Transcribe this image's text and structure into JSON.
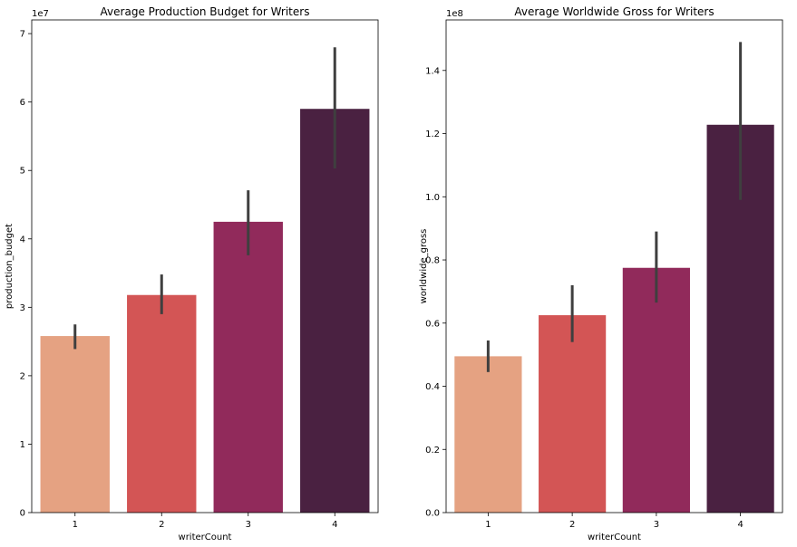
{
  "chart_data": [
    {
      "type": "bar",
      "title": "Average Production Budget for Writers",
      "xlabel": "writerCount",
      "ylabel": "production_budget",
      "y_offset_label": "1e7",
      "ylim": [
        0,
        7.2
      ],
      "y_ticks": [
        0,
        1,
        2,
        3,
        4,
        5,
        6,
        7
      ],
      "y_tick_labels": [
        "0",
        "1",
        "2",
        "3",
        "4",
        "5",
        "6",
        "7"
      ],
      "categories": [
        "1",
        "2",
        "3",
        "4"
      ],
      "values": [
        2.58,
        3.18,
        4.25,
        5.9
      ],
      "error_low": [
        2.39,
        2.9,
        3.76,
        5.03
      ],
      "error_high": [
        2.75,
        3.48,
        4.71,
        6.8
      ],
      "colors": [
        "#e5a282",
        "#d35555",
        "#912a5b",
        "#4a2141"
      ],
      "grid": false
    },
    {
      "type": "bar",
      "title": "Average Worldwide Gross for Writers",
      "xlabel": "writerCount",
      "ylabel": "worldwide_gross",
      "y_offset_label": "1e8",
      "ylim": [
        0,
        1.56
      ],
      "y_ticks": [
        0,
        0.2,
        0.4,
        0.6,
        0.8,
        1.0,
        1.2,
        1.4
      ],
      "y_tick_labels": [
        "0.0",
        "0.2",
        "0.4",
        "0.6",
        "0.8",
        "1.0",
        "1.2",
        "1.4"
      ],
      "categories": [
        "1",
        "2",
        "3",
        "4"
      ],
      "values": [
        0.495,
        0.625,
        0.775,
        1.228
      ],
      "error_low": [
        0.445,
        0.54,
        0.665,
        0.99
      ],
      "error_high": [
        0.545,
        0.72,
        0.89,
        1.49
      ],
      "colors": [
        "#e5a282",
        "#d35555",
        "#912a5b",
        "#4a2141"
      ],
      "grid": false
    }
  ]
}
